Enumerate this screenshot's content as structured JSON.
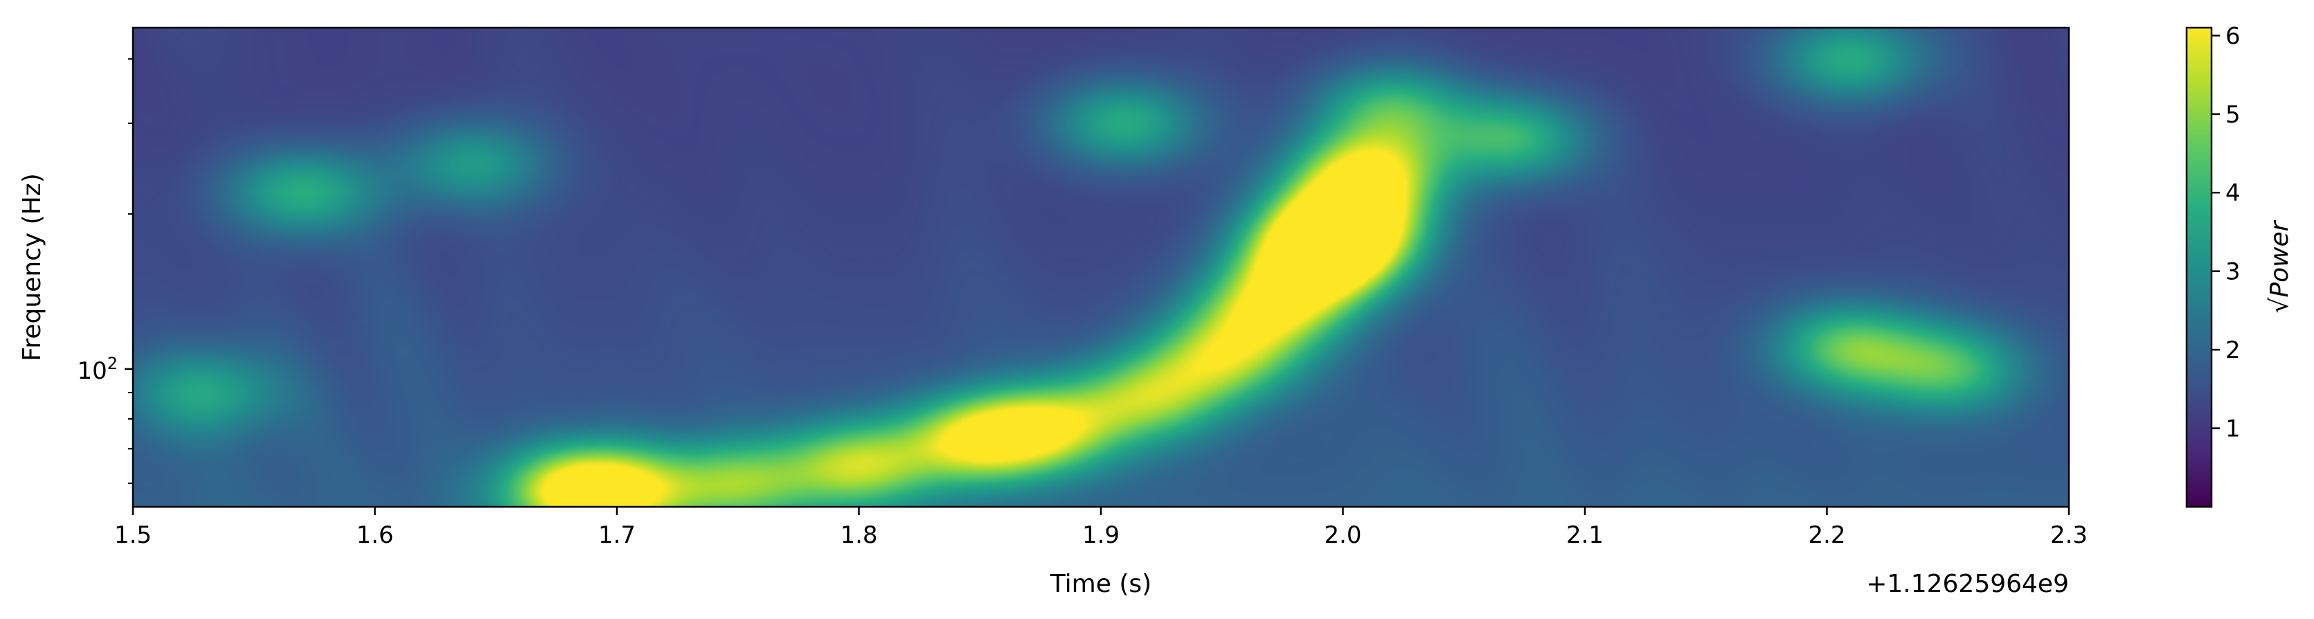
{
  "chart_data": {
    "type": "heatmap",
    "title": "",
    "xlabel": "Time (s)",
    "ylabel": "Frequency (Hz)",
    "x_offset_label": "+1.12625964e9",
    "xlim": [
      1.5,
      2.3
    ],
    "ylim": [
      54,
      460
    ],
    "yscale": "log",
    "x_ticks": [
      1.5,
      1.6,
      1.7,
      1.8,
      1.9,
      2.0,
      2.1,
      2.2,
      2.3
    ],
    "x_tick_labels": [
      "1.5",
      "1.6",
      "1.7",
      "1.8",
      "1.9",
      "2.0",
      "2.1",
      "2.2",
      "2.3"
    ],
    "y_major_ticks": [
      100
    ],
    "y_tick_labels": [
      "10",
      "2"
    ],
    "y_minor_ticks": [
      60,
      70,
      80,
      90,
      200,
      300,
      400
    ],
    "colormap": "viridis",
    "colorbar": {
      "label": "√Power",
      "range": [
        0,
        6.1
      ],
      "ticks": [
        1,
        2,
        3,
        4,
        5,
        6
      ],
      "tick_labels": [
        "1",
        "2",
        "3",
        "4",
        "5",
        "6"
      ]
    },
    "features": [
      {
        "description": "chirp track",
        "points": [
          [
            1.68,
            58,
            3.2
          ],
          [
            1.7,
            58,
            3.5
          ],
          [
            1.75,
            60,
            3.0
          ],
          [
            1.8,
            65,
            3.6
          ],
          [
            1.85,
            73,
            4.2
          ],
          [
            1.88,
            77,
            3.3
          ],
          [
            1.92,
            88,
            3.2
          ],
          [
            1.95,
            105,
            3.4
          ],
          [
            1.97,
            130,
            3.8
          ],
          [
            1.99,
            160,
            5.2
          ],
          [
            2.0,
            190,
            6.0
          ],
          [
            2.01,
            240,
            4.5
          ],
          [
            2.02,
            320,
            2.8
          ]
        ]
      },
      {
        "description": "other blobs",
        "points": [
          [
            1.53,
            90,
            2.0
          ],
          [
            1.57,
            220,
            2.5
          ],
          [
            1.64,
            250,
            2.0
          ],
          [
            1.91,
            300,
            2.5
          ],
          [
            2.07,
            280,
            2.8
          ],
          [
            2.21,
            110,
            3.0
          ],
          [
            2.25,
            100,
            2.7
          ],
          [
            2.21,
            400,
            2.5
          ]
        ]
      }
    ]
  }
}
